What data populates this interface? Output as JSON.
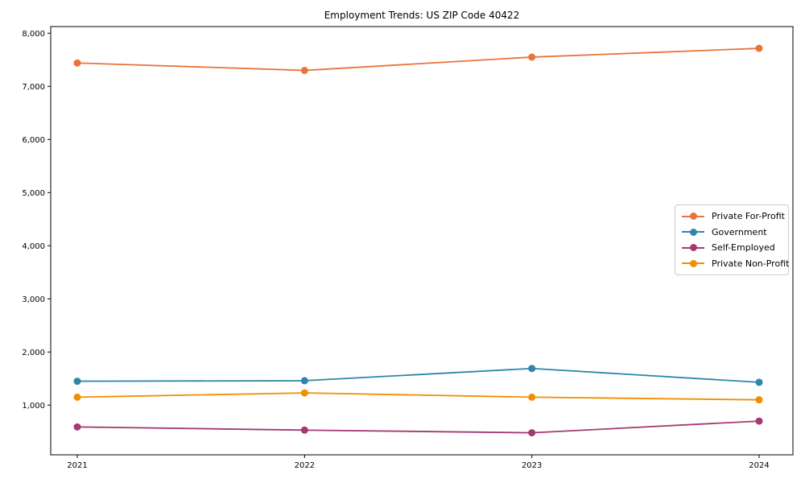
{
  "figure": {
    "background": "#ffffff",
    "spine_color": "#000000"
  },
  "chart_data": {
    "type": "line",
    "title": "Employment Trends: US ZIP Code 40422",
    "x": [
      "2021",
      "2022",
      "2023",
      "2024"
    ],
    "xlabel": "",
    "ylabel": "",
    "ylim": [
      65,
      8125
    ],
    "yticks": [
      1000,
      2000,
      3000,
      4000,
      5000,
      6000,
      7000,
      8000
    ],
    "grid": false,
    "legend_position": "center-right",
    "marker": "circle",
    "series": [
      {
        "name": "Private For-Profit",
        "color": "#e8743b",
        "values": [
          7440,
          7300,
          7550,
          7715
        ]
      },
      {
        "name": "Government",
        "color": "#2e86ab",
        "values": [
          1450,
          1460,
          1690,
          1430
        ]
      },
      {
        "name": "Self-Employed",
        "color": "#a23b72",
        "values": [
          590,
          530,
          480,
          700
        ]
      },
      {
        "name": "Private Non-Profit",
        "color": "#f18f01",
        "values": [
          1150,
          1230,
          1150,
          1100
        ]
      }
    ]
  }
}
